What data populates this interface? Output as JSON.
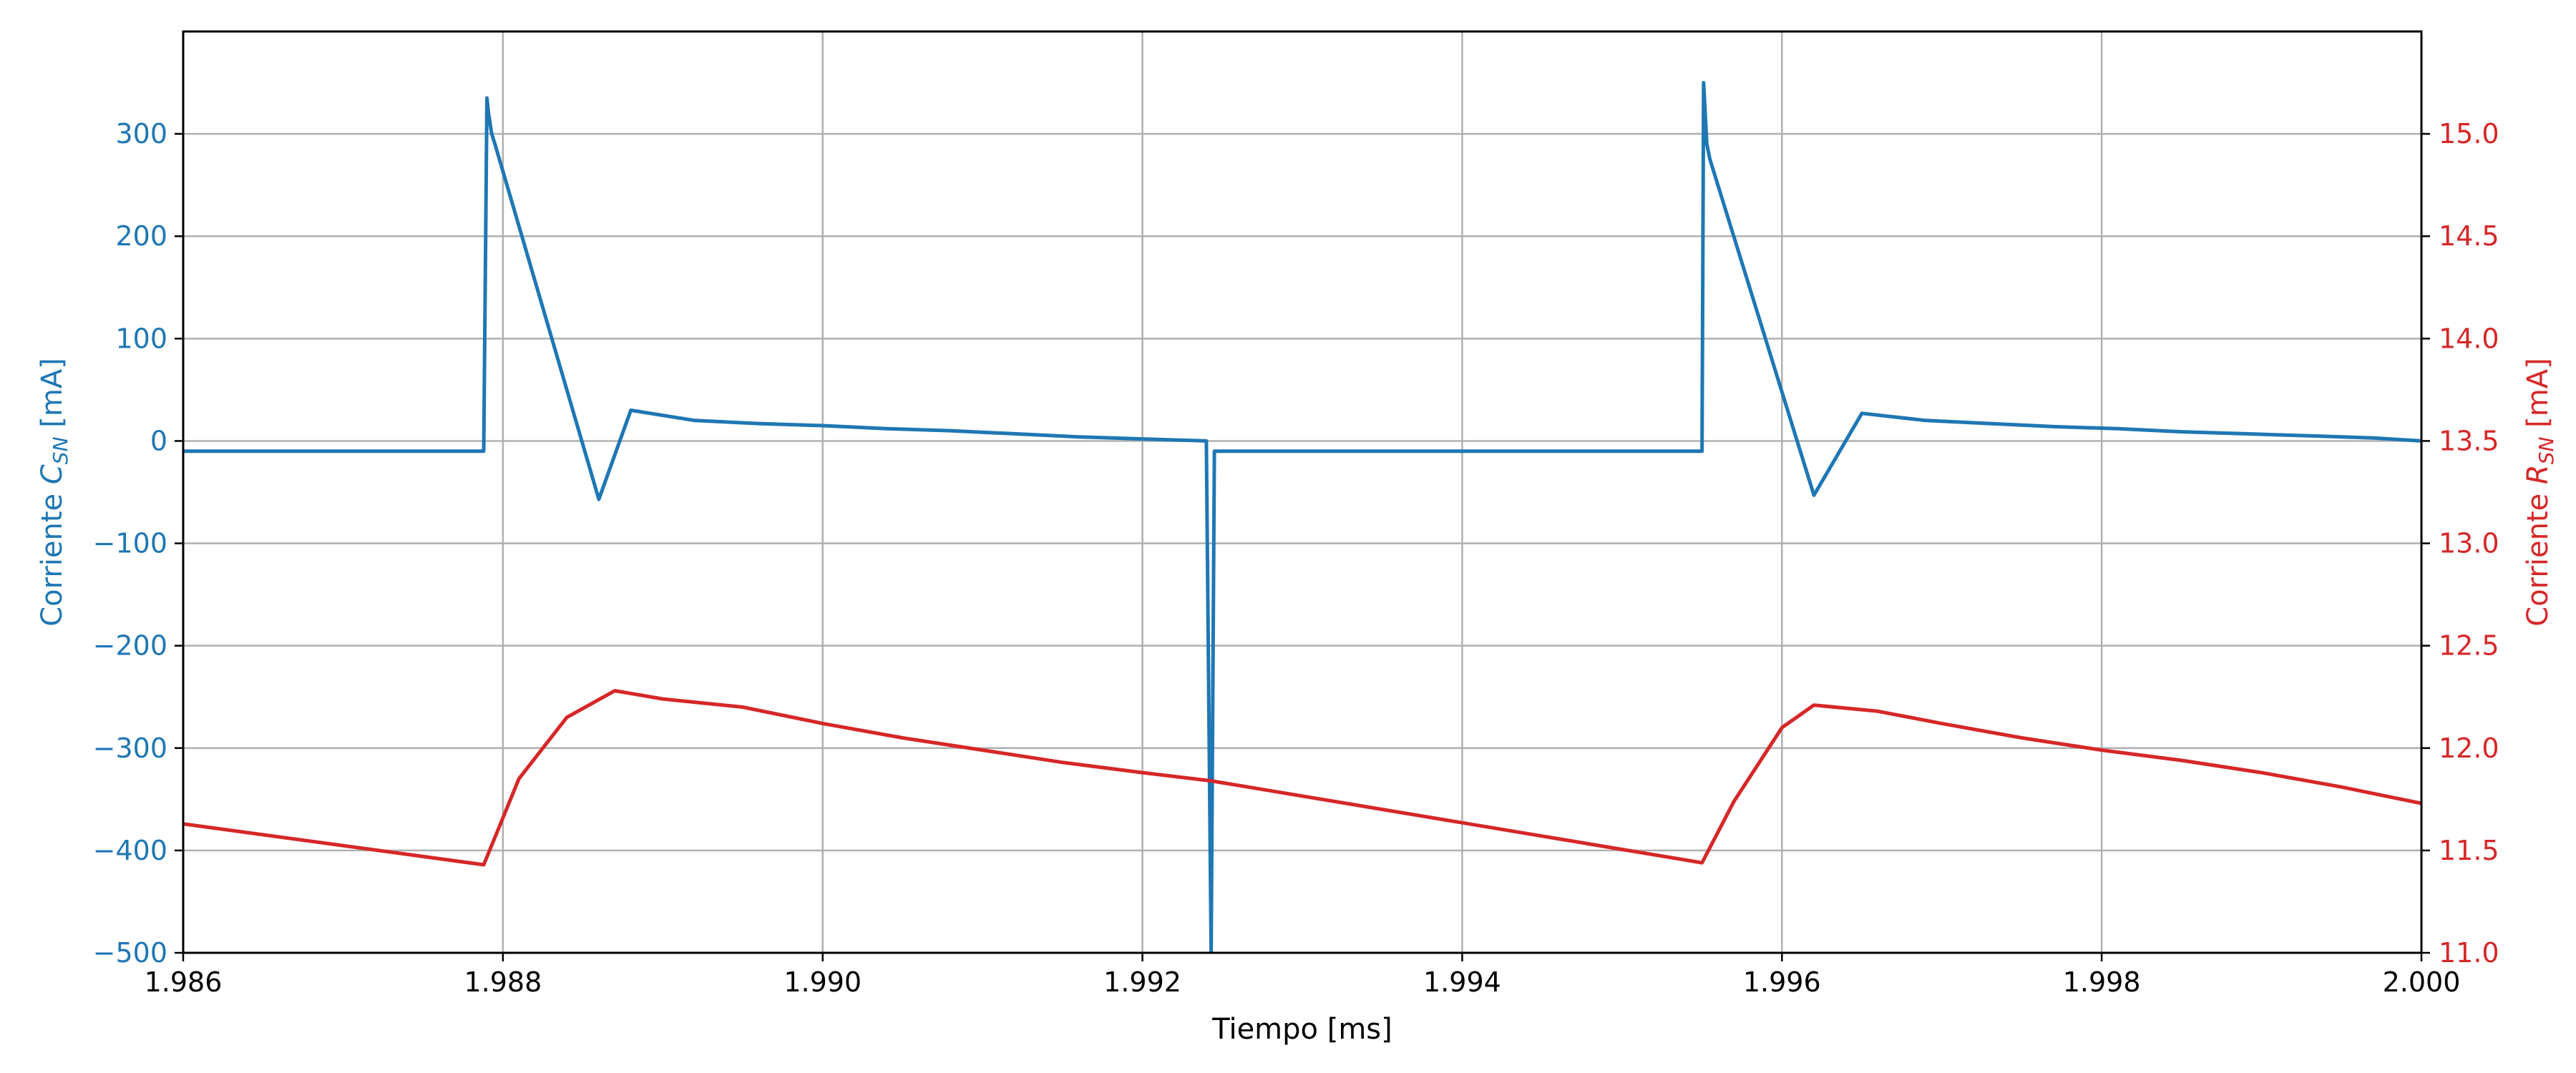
{
  "chart_data": {
    "type": "line",
    "title": "",
    "xlabel": "Tiempo [ms]",
    "ylabel_left": {
      "prefix": "Corriente ",
      "symbol": "C",
      "subscript": "SN",
      "suffix": " [mA]"
    },
    "ylabel_right": {
      "prefix": "Corriente ",
      "symbol": "R",
      "subscript": "SN",
      "suffix": " [mA]"
    },
    "xlim": [
      1.986,
      2.0
    ],
    "ylim_left": [
      -500,
      400
    ],
    "ylim_right": [
      11.0,
      15.5
    ],
    "x_ticks": [
      "1.986",
      "1.988",
      "1.990",
      "1.992",
      "1.994",
      "1.996",
      "1.998",
      "2.000"
    ],
    "y_ticks_left": [
      "300",
      "200",
      "100",
      "0",
      "−100",
      "−200",
      "−300",
      "−400",
      "−500"
    ],
    "y_ticks_right": [
      "15.0",
      "14.5",
      "14.0",
      "13.5",
      "13.0",
      "12.5",
      "12.0",
      "11.5",
      "11.0"
    ],
    "grid": true,
    "colors": {
      "left_series": "#1f77b4",
      "right_series": "#d62728",
      "grid": "#b0b0b0"
    },
    "series": [
      {
        "axis": "left",
        "x": [
          1.986,
          1.98788,
          1.9879,
          1.98791,
          1.98793,
          1.98795,
          1.9886,
          1.9888,
          1.9892,
          1.9896,
          1.99,
          1.9904,
          1.9908,
          1.9912,
          1.9916,
          1.992,
          1.9924,
          1.99243,
          1.99245,
          1.99246,
          1.9955,
          1.99551,
          1.99553,
          1.99555,
          1.9962,
          1.9965,
          1.9969,
          1.9973,
          1.9977,
          1.9981,
          1.9985,
          1.9989,
          1.9993,
          1.9997,
          2.0
        ],
        "y": [
          -10,
          -10,
          335,
          320,
          300,
          290,
          -57,
          30,
          20,
          17,
          15,
          12,
          10,
          7,
          4,
          2,
          0,
          -500,
          -10,
          -10,
          -10,
          350,
          290,
          275,
          -53,
          27,
          20,
          17,
          14,
          12,
          9,
          7,
          5,
          3,
          0
        ]
      },
      {
        "axis": "right",
        "x": [
          1.986,
          1.98788,
          1.9881,
          1.9884,
          1.9887,
          1.989,
          1.9895,
          1.99,
          1.9905,
          1.991,
          1.9915,
          1.992,
          1.99243,
          1.9955,
          1.9957,
          1.996,
          1.9962,
          1.9966,
          1.997,
          1.9975,
          1.998,
          1.9985,
          1.999,
          1.9995,
          2.0
        ],
        "y": [
          11.63,
          11.43,
          11.85,
          12.15,
          12.28,
          12.24,
          12.2,
          12.12,
          12.05,
          11.99,
          11.93,
          11.88,
          11.84,
          11.44,
          11.74,
          12.1,
          12.21,
          12.18,
          12.12,
          12.05,
          11.99,
          11.94,
          11.88,
          11.81,
          11.73
        ]
      }
    ]
  }
}
